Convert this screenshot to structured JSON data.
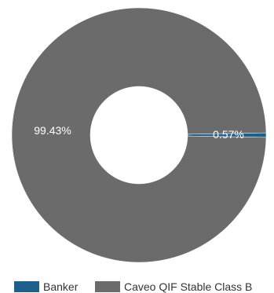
{
  "chart_data": {
    "type": "pie",
    "donut": true,
    "title": "",
    "legend_position": "bottom",
    "series": [
      {
        "name": "Banker",
        "value": 0.57,
        "label": "0.57%",
        "color": "#1f5f8b"
      },
      {
        "name": "Caveo QIF Stable Class B",
        "value": 99.43,
        "label": "99.43%",
        "color": "#6b6b6b"
      }
    ]
  }
}
